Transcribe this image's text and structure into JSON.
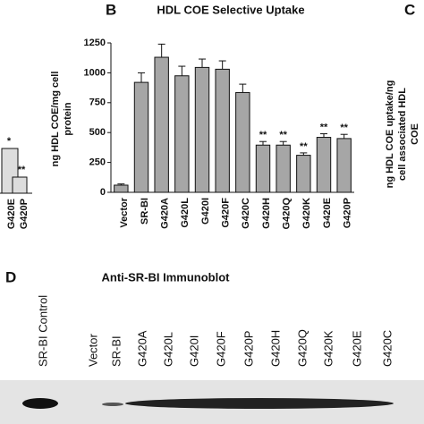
{
  "chart_data": {
    "type": "bar",
    "title": "HDL COE Selective Uptake",
    "panel_label": "B",
    "ylabel": [
      "ng HDL COE/mg cell",
      "protein"
    ],
    "categories": [
      "Vector",
      "SR-BI",
      "G420A",
      "G420L",
      "G420I",
      "G420F",
      "G420C",
      "G420H",
      "G420Q",
      "G420K",
      "G420E",
      "G420P"
    ],
    "values": [
      60,
      920,
      1130,
      975,
      1045,
      1030,
      835,
      395,
      395,
      310,
      460,
      450
    ],
    "errors": [
      10,
      80,
      110,
      80,
      70,
      70,
      70,
      30,
      30,
      20,
      30,
      35
    ],
    "annotations": [
      null,
      null,
      null,
      null,
      null,
      null,
      null,
      "**",
      "**",
      "**",
      "**",
      "**"
    ],
    "color": "#a6a6a6",
    "ylim": [
      0,
      1250
    ],
    "yticks": [
      0,
      250,
      500,
      750,
      1000,
      1250
    ]
  },
  "left_fragment": {
    "labels": [
      "G420E",
      "G420P"
    ],
    "annotations": [
      "*",
      "**"
    ]
  },
  "panel_c": {
    "label": "C",
    "ylabel": [
      "ng HDL COE uptake/ng",
      "cell associated HDL",
      "COE"
    ]
  },
  "panel_d": {
    "label": "D",
    "title": "Anti-SR-BI Immunoblot",
    "lanes": [
      "SR-BI Control",
      "Vector",
      "SR-BI",
      "G420A",
      "G420L",
      "G420I",
      "G420F",
      "G420P",
      "G420H",
      "G420Q",
      "G420K",
      "G420E",
      "G420C"
    ]
  }
}
